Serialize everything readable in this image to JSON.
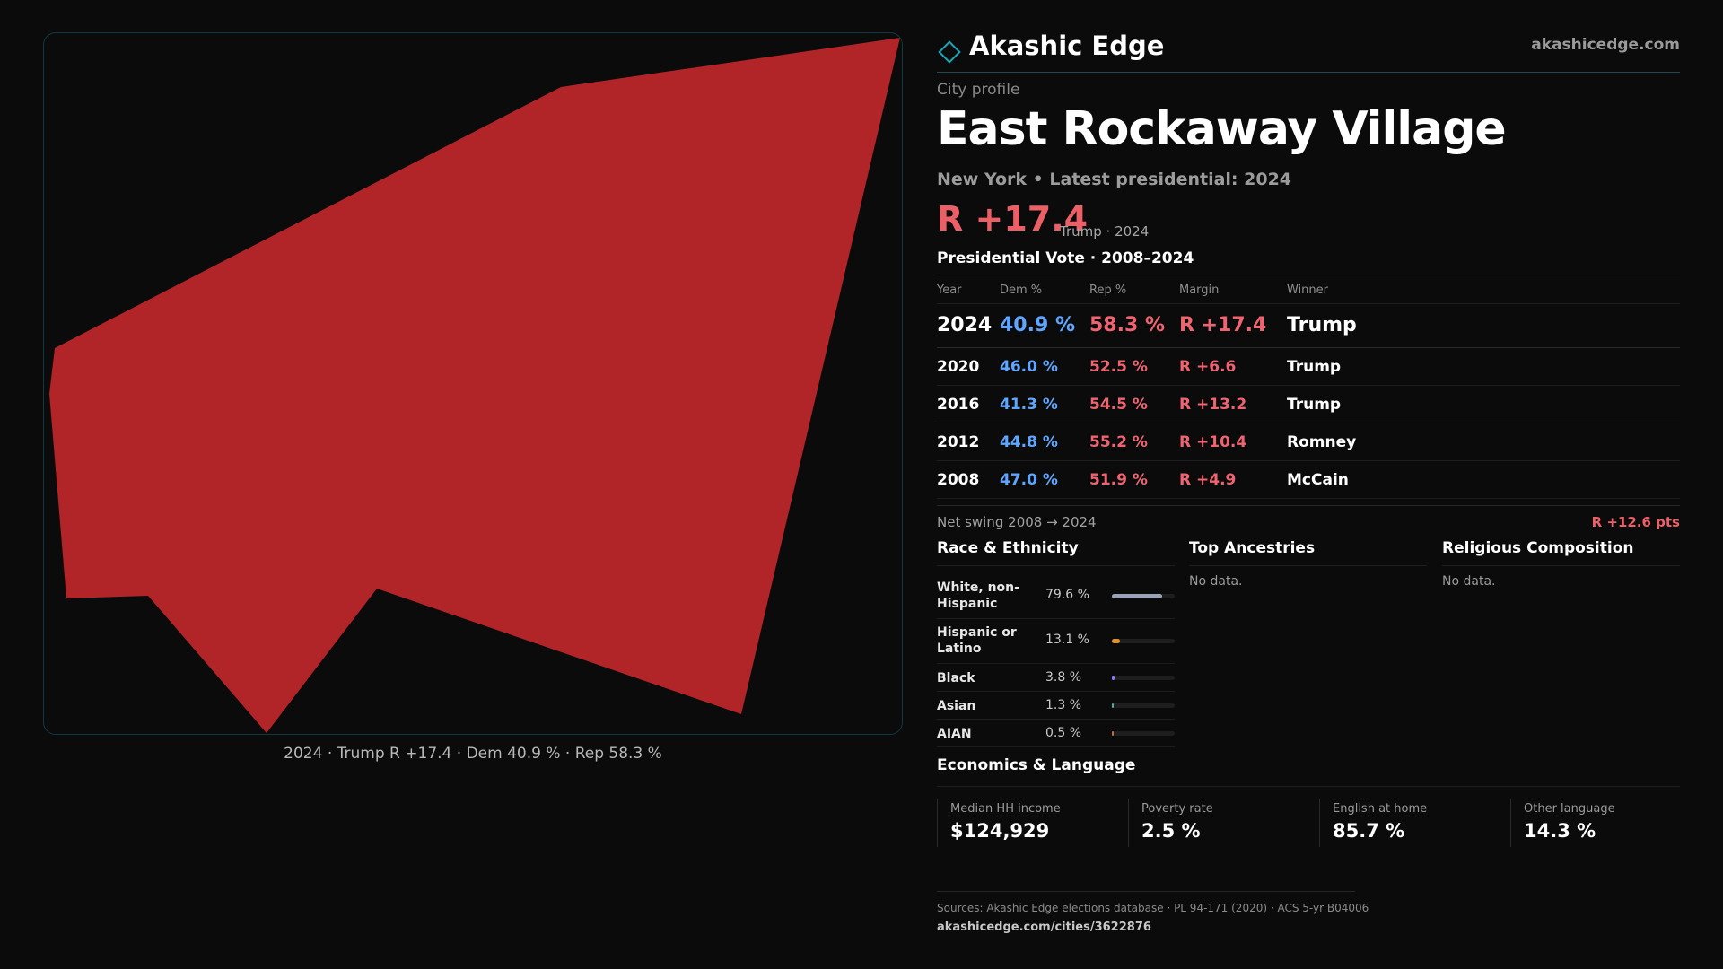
{
  "brand": {
    "name": "Akashic Edge",
    "url": "akashicedge.com"
  },
  "profile": {
    "label": "City profile",
    "title": "East Rockaway Village",
    "subtitle": "New York • Latest presidential: 2024",
    "headline_margin": "R +17.4",
    "headline_note": "Trump · 2024"
  },
  "map": {
    "fill_color": "#b12428",
    "caption": "2024 · Trump R +17.4 · Dem 40.9 % · Rep 58.3 %"
  },
  "vote": {
    "title": "Presidential Vote · 2008–2024",
    "headers": {
      "year": "Year",
      "dem": "Dem %",
      "rep": "Rep %",
      "margin": "Margin",
      "winner": "Winner"
    },
    "rows": [
      {
        "year": "2024",
        "dem": "40.9 %",
        "rep": "58.3 %",
        "margin": "R +17.4",
        "winner": "Trump"
      },
      {
        "year": "2020",
        "dem": "46.0 %",
        "rep": "52.5 %",
        "margin": "R +6.6",
        "winner": "Trump"
      },
      {
        "year": "2016",
        "dem": "41.3 %",
        "rep": "54.5 %",
        "margin": "R +13.2",
        "winner": "Trump"
      },
      {
        "year": "2012",
        "dem": "44.8 %",
        "rep": "55.2 %",
        "margin": "R +10.4",
        "winner": "Romney"
      },
      {
        "year": "2008",
        "dem": "47.0 %",
        "rep": "51.9 %",
        "margin": "R +4.9",
        "winner": "McCain"
      }
    ],
    "swing_label": "Net swing 2008 → 2024",
    "swing_value": "R +12.6 pts"
  },
  "race": {
    "title": "Race & Ethnicity",
    "rows": [
      {
        "label": "White, non-Hispanic",
        "pct": "79.6 %",
        "value": 79.6,
        "color": "#9aa3b5"
      },
      {
        "label": "Hispanic or Latino",
        "pct": "13.1 %",
        "value": 13.1,
        "color": "#e0922a"
      },
      {
        "label": "Black",
        "pct": "3.8 %",
        "value": 3.8,
        "color": "#8a7cff"
      },
      {
        "label": "Asian",
        "pct": "1.3 %",
        "value": 1.3,
        "color": "#4cb0a0"
      },
      {
        "label": "AIAN",
        "pct": "0.5 %",
        "value": 0.5,
        "color": "#c86a3a"
      }
    ]
  },
  "ancestries": {
    "title": "Top Ancestries",
    "empty": "No data."
  },
  "religion": {
    "title": "Religious Composition",
    "empty": "No data."
  },
  "economics": {
    "title": "Economics & Language",
    "cards": [
      {
        "label": "Median HH income",
        "value": "$124,929"
      },
      {
        "label": "Poverty rate",
        "value": "2.5 %"
      },
      {
        "label": "English at home",
        "value": "85.7 %"
      },
      {
        "label": "Other language",
        "value": "14.3 %"
      }
    ]
  },
  "footer": {
    "sources": "Sources: Akashic Edge elections database · PL 94-171 (2020) · ACS 5-yr B04006",
    "url": "akashicedge.com/cities/3622876"
  }
}
